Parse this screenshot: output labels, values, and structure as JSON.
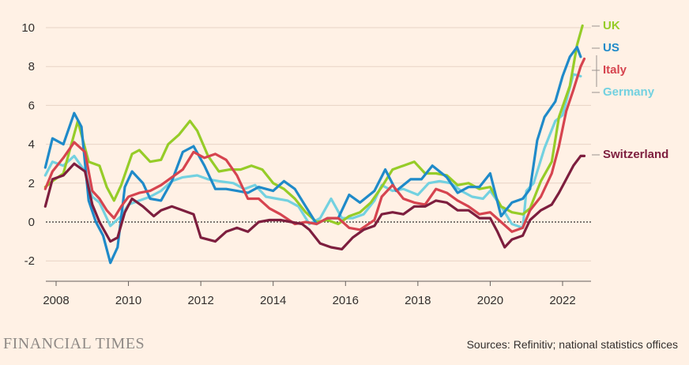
{
  "chart_data": {
    "type": "line",
    "xlim": [
      2007.67,
      2022.75
    ],
    "ylim": [
      -3,
      10.5
    ],
    "y_ticks": [
      -2,
      0,
      2,
      4,
      6,
      8,
      10
    ],
    "y_tick_labels": [
      "-2",
      "0",
      "2",
      "4",
      "6",
      "8",
      "10"
    ],
    "x_ticks": [
      2008,
      2010,
      2012,
      2014,
      2016,
      2018,
      2020,
      2022
    ],
    "x_tick_labels": [
      "2008",
      "2010",
      "2012",
      "2014",
      "2016",
      "2018",
      "2020",
      "2022"
    ],
    "grid": "horizontal",
    "zero_line": "dotted",
    "series": [
      {
        "name": "Germany",
        "color": "#73d1e0",
        "points": [
          [
            2007.7,
            2.4
          ],
          [
            2007.9,
            3.1
          ],
          [
            2008.2,
            2.9
          ],
          [
            2008.5,
            3.4
          ],
          [
            2008.8,
            2.6
          ],
          [
            2009.0,
            1.3
          ],
          [
            2009.2,
            1.0
          ],
          [
            2009.5,
            -0.2
          ],
          [
            2009.8,
            0.3
          ],
          [
            2010.0,
            0.9
          ],
          [
            2010.3,
            1.1
          ],
          [
            2010.6,
            1.3
          ],
          [
            2010.9,
            1.6
          ],
          [
            2011.2,
            2.1
          ],
          [
            2011.5,
            2.3
          ],
          [
            2011.9,
            2.4
          ],
          [
            2012.2,
            2.2
          ],
          [
            2012.5,
            2.1
          ],
          [
            2012.9,
            2.0
          ],
          [
            2013.2,
            1.7
          ],
          [
            2013.5,
            1.9
          ],
          [
            2013.8,
            1.3
          ],
          [
            2014.1,
            1.2
          ],
          [
            2014.4,
            1.1
          ],
          [
            2014.7,
            0.8
          ],
          [
            2015.0,
            -0.1
          ],
          [
            2015.3,
            0.2
          ],
          [
            2015.6,
            1.2
          ],
          [
            2015.9,
            0.2
          ],
          [
            2016.2,
            0.2
          ],
          [
            2016.5,
            0.4
          ],
          [
            2016.8,
            1.1
          ],
          [
            2017.0,
            1.9
          ],
          [
            2017.3,
            1.6
          ],
          [
            2017.6,
            1.7
          ],
          [
            2018.0,
            1.4
          ],
          [
            2018.3,
            2.0
          ],
          [
            2018.6,
            2.1
          ],
          [
            2018.9,
            2.0
          ],
          [
            2019.2,
            1.6
          ],
          [
            2019.5,
            1.3
          ],
          [
            2019.8,
            1.2
          ],
          [
            2020.0,
            1.6
          ],
          [
            2020.3,
            0.8
          ],
          [
            2020.6,
            -0.1
          ],
          [
            2020.9,
            -0.3
          ],
          [
            2021.0,
            1.6
          ],
          [
            2021.2,
            2.0
          ],
          [
            2021.5,
            3.8
          ],
          [
            2021.8,
            5.2
          ],
          [
            2022.0,
            5.5
          ],
          [
            2022.3,
            7.6
          ],
          [
            2022.5,
            7.5
          ]
        ]
      },
      {
        "name": "UK",
        "color": "#96cc28",
        "points": [
          [
            2007.7,
            1.8
          ],
          [
            2007.9,
            2.1
          ],
          [
            2008.2,
            2.5
          ],
          [
            2008.6,
            5.2
          ],
          [
            2008.9,
            3.1
          ],
          [
            2009.2,
            2.9
          ],
          [
            2009.4,
            1.8
          ],
          [
            2009.6,
            1.1
          ],
          [
            2009.8,
            1.9
          ],
          [
            2010.1,
            3.5
          ],
          [
            2010.3,
            3.7
          ],
          [
            2010.6,
            3.1
          ],
          [
            2010.9,
            3.2
          ],
          [
            2011.1,
            4.0
          ],
          [
            2011.4,
            4.5
          ],
          [
            2011.7,
            5.2
          ],
          [
            2011.9,
            4.7
          ],
          [
            2012.2,
            3.4
          ],
          [
            2012.5,
            2.6
          ],
          [
            2012.8,
            2.7
          ],
          [
            2013.1,
            2.7
          ],
          [
            2013.4,
            2.9
          ],
          [
            2013.7,
            2.7
          ],
          [
            2014.0,
            2.0
          ],
          [
            2014.3,
            1.7
          ],
          [
            2014.6,
            1.2
          ],
          [
            2014.9,
            0.5
          ],
          [
            2015.2,
            0.0
          ],
          [
            2015.5,
            0.1
          ],
          [
            2015.8,
            -0.1
          ],
          [
            2016.1,
            0.3
          ],
          [
            2016.4,
            0.5
          ],
          [
            2016.7,
            1.0
          ],
          [
            2017.0,
            1.8
          ],
          [
            2017.3,
            2.7
          ],
          [
            2017.6,
            2.9
          ],
          [
            2017.9,
            3.1
          ],
          [
            2018.2,
            2.5
          ],
          [
            2018.5,
            2.5
          ],
          [
            2018.8,
            2.4
          ],
          [
            2019.1,
            1.9
          ],
          [
            2019.4,
            2.0
          ],
          [
            2019.7,
            1.7
          ],
          [
            2020.0,
            1.8
          ],
          [
            2020.3,
            0.8
          ],
          [
            2020.6,
            0.5
          ],
          [
            2020.9,
            0.4
          ],
          [
            2021.1,
            0.7
          ],
          [
            2021.4,
            2.1
          ],
          [
            2021.7,
            3.1
          ],
          [
            2021.9,
            5.4
          ],
          [
            2022.2,
            7.0
          ],
          [
            2022.4,
            9.1
          ],
          [
            2022.55,
            10.1
          ]
        ]
      },
      {
        "name": "US",
        "color": "#1f8ac9",
        "points": [
          [
            2007.7,
            2.8
          ],
          [
            2007.9,
            4.3
          ],
          [
            2008.2,
            4.0
          ],
          [
            2008.5,
            5.6
          ],
          [
            2008.7,
            4.9
          ],
          [
            2008.9,
            1.1
          ],
          [
            2009.1,
            0.0
          ],
          [
            2009.3,
            -0.7
          ],
          [
            2009.5,
            -2.1
          ],
          [
            2009.7,
            -1.3
          ],
          [
            2009.9,
            1.8
          ],
          [
            2010.1,
            2.6
          ],
          [
            2010.4,
            2.0
          ],
          [
            2010.6,
            1.2
          ],
          [
            2010.9,
            1.1
          ],
          [
            2011.2,
            2.1
          ],
          [
            2011.5,
            3.6
          ],
          [
            2011.8,
            3.9
          ],
          [
            2012.1,
            2.9
          ],
          [
            2012.4,
            1.7
          ],
          [
            2012.7,
            1.7
          ],
          [
            2013.0,
            1.6
          ],
          [
            2013.3,
            1.5
          ],
          [
            2013.6,
            1.8
          ],
          [
            2014.0,
            1.6
          ],
          [
            2014.3,
            2.1
          ],
          [
            2014.6,
            1.7
          ],
          [
            2014.9,
            0.8
          ],
          [
            2015.2,
            -0.1
          ],
          [
            2015.5,
            0.2
          ],
          [
            2015.8,
            0.2
          ],
          [
            2016.1,
            1.4
          ],
          [
            2016.4,
            1.0
          ],
          [
            2016.8,
            1.6
          ],
          [
            2017.1,
            2.7
          ],
          [
            2017.4,
            1.6
          ],
          [
            2017.8,
            2.2
          ],
          [
            2018.1,
            2.2
          ],
          [
            2018.4,
            2.9
          ],
          [
            2018.8,
            2.3
          ],
          [
            2019.1,
            1.5
          ],
          [
            2019.4,
            1.8
          ],
          [
            2019.7,
            1.8
          ],
          [
            2020.0,
            2.5
          ],
          [
            2020.3,
            0.3
          ],
          [
            2020.6,
            1.0
          ],
          [
            2020.9,
            1.2
          ],
          [
            2021.1,
            1.7
          ],
          [
            2021.3,
            4.2
          ],
          [
            2021.5,
            5.4
          ],
          [
            2021.8,
            6.2
          ],
          [
            2022.0,
            7.5
          ],
          [
            2022.2,
            8.5
          ],
          [
            2022.4,
            9.0
          ],
          [
            2022.5,
            8.5
          ]
        ]
      },
      {
        "name": "Italy",
        "color": "#d6444f",
        "points": [
          [
            2007.7,
            1.7
          ],
          [
            2007.9,
            2.6
          ],
          [
            2008.2,
            3.3
          ],
          [
            2008.5,
            4.1
          ],
          [
            2008.8,
            3.6
          ],
          [
            2009.0,
            1.6
          ],
          [
            2009.2,
            1.2
          ],
          [
            2009.4,
            0.6
          ],
          [
            2009.6,
            0.2
          ],
          [
            2009.8,
            0.8
          ],
          [
            2010.0,
            1.3
          ],
          [
            2010.3,
            1.5
          ],
          [
            2010.6,
            1.6
          ],
          [
            2010.9,
            1.9
          ],
          [
            2011.2,
            2.3
          ],
          [
            2011.5,
            2.7
          ],
          [
            2011.8,
            3.6
          ],
          [
            2012.1,
            3.3
          ],
          [
            2012.4,
            3.5
          ],
          [
            2012.7,
            3.2
          ],
          [
            2013.0,
            2.4
          ],
          [
            2013.3,
            1.2
          ],
          [
            2013.6,
            1.2
          ],
          [
            2013.9,
            0.7
          ],
          [
            2014.2,
            0.4
          ],
          [
            2014.6,
            -0.1
          ],
          [
            2014.9,
            0.0
          ],
          [
            2015.2,
            -0.1
          ],
          [
            2015.5,
            0.2
          ],
          [
            2015.8,
            0.2
          ],
          [
            2016.1,
            -0.3
          ],
          [
            2016.4,
            -0.4
          ],
          [
            2016.8,
            0.1
          ],
          [
            2017.0,
            1.3
          ],
          [
            2017.3,
            1.9
          ],
          [
            2017.6,
            1.2
          ],
          [
            2017.9,
            1.0
          ],
          [
            2018.2,
            0.9
          ],
          [
            2018.5,
            1.7
          ],
          [
            2018.8,
            1.5
          ],
          [
            2019.1,
            1.1
          ],
          [
            2019.4,
            0.8
          ],
          [
            2019.7,
            0.4
          ],
          [
            2020.0,
            0.5
          ],
          [
            2020.3,
            0.0
          ],
          [
            2020.6,
            -0.5
          ],
          [
            2020.9,
            -0.3
          ],
          [
            2021.1,
            0.6
          ],
          [
            2021.4,
            1.3
          ],
          [
            2021.7,
            2.5
          ],
          [
            2021.9,
            3.9
          ],
          [
            2022.1,
            5.7
          ],
          [
            2022.3,
            6.8
          ],
          [
            2022.5,
            8.0
          ],
          [
            2022.6,
            8.4
          ]
        ]
      },
      {
        "name": "Switzerland",
        "color": "#7d1e3e",
        "points": [
          [
            2007.7,
            0.8
          ],
          [
            2007.9,
            2.2
          ],
          [
            2008.2,
            2.4
          ],
          [
            2008.5,
            3.0
          ],
          [
            2008.8,
            2.6
          ],
          [
            2009.0,
            0.9
          ],
          [
            2009.2,
            0.0
          ],
          [
            2009.5,
            -1.0
          ],
          [
            2009.7,
            -0.8
          ],
          [
            2009.9,
            0.5
          ],
          [
            2010.1,
            1.2
          ],
          [
            2010.4,
            0.8
          ],
          [
            2010.7,
            0.3
          ],
          [
            2010.9,
            0.6
          ],
          [
            2011.2,
            0.8
          ],
          [
            2011.5,
            0.6
          ],
          [
            2011.8,
            0.4
          ],
          [
            2012.0,
            -0.8
          ],
          [
            2012.4,
            -1.0
          ],
          [
            2012.7,
            -0.5
          ],
          [
            2013.0,
            -0.3
          ],
          [
            2013.3,
            -0.5
          ],
          [
            2013.6,
            0.0
          ],
          [
            2013.9,
            0.1
          ],
          [
            2014.2,
            0.1
          ],
          [
            2014.5,
            0.0
          ],
          [
            2014.8,
            -0.1
          ],
          [
            2015.0,
            -0.4
          ],
          [
            2015.3,
            -1.1
          ],
          [
            2015.6,
            -1.3
          ],
          [
            2015.9,
            -1.4
          ],
          [
            2016.2,
            -0.8
          ],
          [
            2016.5,
            -0.4
          ],
          [
            2016.8,
            -0.2
          ],
          [
            2017.0,
            0.4
          ],
          [
            2017.3,
            0.5
          ],
          [
            2017.6,
            0.4
          ],
          [
            2017.9,
            0.8
          ],
          [
            2018.2,
            0.8
          ],
          [
            2018.5,
            1.1
          ],
          [
            2018.8,
            1.0
          ],
          [
            2019.1,
            0.6
          ],
          [
            2019.4,
            0.6
          ],
          [
            2019.7,
            0.2
          ],
          [
            2020.0,
            0.2
          ],
          [
            2020.2,
            -0.5
          ],
          [
            2020.4,
            -1.3
          ],
          [
            2020.6,
            -0.9
          ],
          [
            2020.9,
            -0.7
          ],
          [
            2021.1,
            0.1
          ],
          [
            2021.4,
            0.6
          ],
          [
            2021.7,
            0.9
          ],
          [
            2021.9,
            1.5
          ],
          [
            2022.1,
            2.2
          ],
          [
            2022.3,
            2.9
          ],
          [
            2022.5,
            3.4
          ],
          [
            2022.6,
            3.4
          ]
        ]
      }
    ],
    "labels": [
      {
        "series": "UK",
        "text": "UK"
      },
      {
        "series": "US",
        "text": "US"
      },
      {
        "series": "Italy",
        "text": "Italy"
      },
      {
        "series": "Germany",
        "text": "Germany"
      },
      {
        "series": "Switzerland",
        "text": "Switzerland"
      }
    ]
  },
  "footer": {
    "brand": "FINANCIAL TIMES",
    "source": "Sources: Refinitiv; national statistics offices"
  }
}
